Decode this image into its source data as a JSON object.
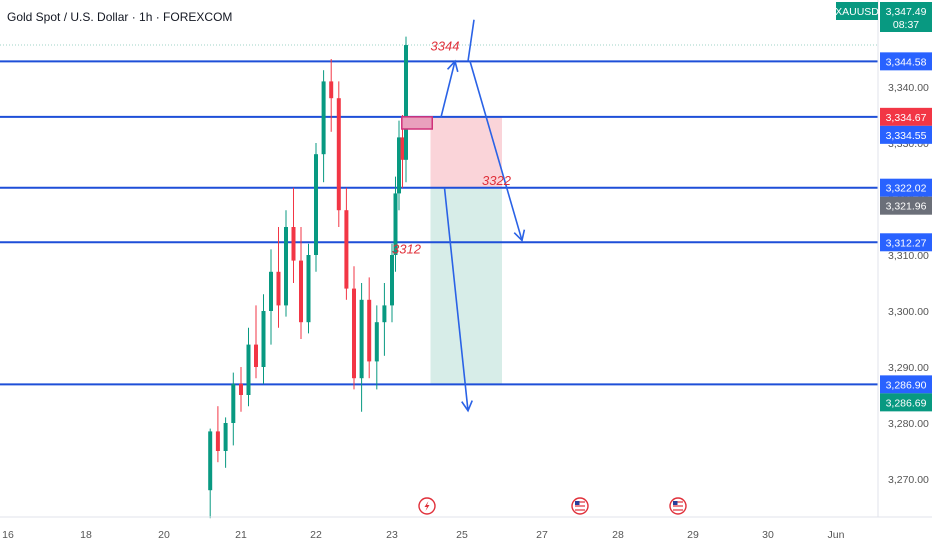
{
  "header": {
    "title": "Gold Spot / U.S. Dollar · 1h · FOREXCOM"
  },
  "colors": {
    "bull": "#089981",
    "bear": "#f23645",
    "level_line": "#1e4fd8",
    "arrow": "#2a62e6",
    "zone_red": "#f9c9cf",
    "zone_green": "#cde9e2",
    "badge_blue": "#2962ff",
    "badge_green": "#089981",
    "badge_red": "#f23645",
    "badge_gray": "#6b6f79",
    "annotation": "#e0303a",
    "marker_box": "#d0317a"
  },
  "chart_data": {
    "type": "candlestick",
    "symbol": "XAUUSD",
    "x_ticks": [
      "16",
      "18",
      "20",
      "21",
      "22",
      "23",
      "25",
      "27",
      "28",
      "29",
      "30",
      "Jun"
    ],
    "y_ticks": [
      "3,270.00",
      "3,280.00",
      "3,290.00",
      "3,300.00",
      "3,310.00",
      "3,320.00",
      "3,330.00",
      "3,340.00"
    ],
    "y_tick_values": [
      3270,
      3280,
      3290,
      3300,
      3310,
      3320,
      3330,
      3340
    ],
    "ylim": [
      3263,
      3350
    ],
    "x_range_days": [
      16,
      32
    ],
    "grid": false,
    "horizontal_levels": [
      3344.58,
      3334.67,
      3322.02,
      3312.27,
      3286.9
    ],
    "price_badges": [
      {
        "label": "XAUUSD",
        "price": 3347.49,
        "kind": "symbol"
      },
      {
        "label": "3,347.49",
        "sub": "08:37",
        "price": 3347.49,
        "kind": "green"
      },
      {
        "label": "3,344.58",
        "price": 3344.58,
        "kind": "blue"
      },
      {
        "label": "3,334.67",
        "price": 3334.67,
        "kind": "red"
      },
      {
        "label": "3,334.55",
        "price": 3334.55,
        "kind": "blue"
      },
      {
        "label": "3,322.02",
        "price": 3322.02,
        "kind": "blue"
      },
      {
        "label": "3,321.96",
        "price": 3321.96,
        "kind": "gray"
      },
      {
        "label": "3,312.27",
        "price": 3312.27,
        "kind": "blue"
      },
      {
        "label": "3,286.90",
        "price": 3286.9,
        "kind": "blue"
      },
      {
        "label": "3,286.69",
        "price": 3286.69,
        "kind": "green"
      }
    ],
    "position_zone": {
      "day_start": 24.1,
      "day_end": 26.0,
      "entry": 3322.02,
      "stop": 3334.67,
      "target": 3286.9
    },
    "marker_box": {
      "day_start": 23.28,
      "day_end": 24.15,
      "low": 3332.5,
      "high": 3334.67
    },
    "annotations": [
      {
        "text": "3344",
        "day": 24.1,
        "price": 3346.5
      },
      {
        "text": "3322",
        "day": 25.5,
        "price": 3322.5
      },
      {
        "text": "3312",
        "day": 23.0,
        "price": 3310.3
      }
    ],
    "arrows": [
      {
        "from": [
          24.4,
          3334.6
        ],
        "to": [
          24.8,
          3344.6
        ]
      },
      {
        "from": [
          25.2,
          3344.6
        ],
        "to": [
          26.5,
          3312.6
        ]
      },
      {
        "from": [
          24.5,
          3322.0
        ],
        "to": [
          25.15,
          3282.2
        ]
      },
      {
        "from": [
          25.15,
          3344.6
        ],
        "to": [
          25.3,
          3352
        ]
      }
    ],
    "event_icons": [
      {
        "name": "lightning-icon",
        "day": 24.0
      },
      {
        "name": "us-flag-icon",
        "day": 27.5
      },
      {
        "name": "us-flag-icon",
        "day": 28.8
      }
    ],
    "candles": [
      [
        20.6,
        3268,
        3279,
        3263,
        3278.5
      ],
      [
        20.7,
        3278.5,
        3283,
        3273,
        3275
      ],
      [
        20.8,
        3275,
        3281,
        3272,
        3280
      ],
      [
        20.9,
        3280,
        3289,
        3276,
        3287
      ],
      [
        21.0,
        3287,
        3290,
        3282,
        3285
      ],
      [
        21.1,
        3285,
        3297,
        3283,
        3294
      ],
      [
        21.2,
        3294,
        3301,
        3288,
        3290
      ],
      [
        21.3,
        3290,
        3303,
        3287,
        3300
      ],
      [
        21.4,
        3300,
        3311,
        3294,
        3307
      ],
      [
        21.5,
        3307,
        3315,
        3297,
        3301
      ],
      [
        21.6,
        3301,
        3318,
        3299,
        3315
      ],
      [
        21.7,
        3315,
        3322,
        3305,
        3309
      ],
      [
        21.8,
        3309,
        3315,
        3295,
        3298
      ],
      [
        21.9,
        3298,
        3312,
        3296,
        3310
      ],
      [
        22.0,
        3310,
        3330,
        3307,
        3328
      ],
      [
        22.1,
        3328,
        3343,
        3323,
        3341
      ],
      [
        22.2,
        3341,
        3345,
        3332,
        3338
      ],
      [
        22.3,
        3338,
        3341,
        3315,
        3318
      ],
      [
        22.4,
        3318,
        3322,
        3302,
        3304
      ],
      [
        22.5,
        3304,
        3308,
        3286,
        3288
      ],
      [
        22.6,
        3288,
        3305,
        3282,
        3302
      ],
      [
        22.7,
        3302,
        3306,
        3288,
        3291
      ],
      [
        22.8,
        3291,
        3301,
        3286,
        3298
      ],
      [
        22.9,
        3298,
        3305,
        3292,
        3301
      ],
      [
        23.0,
        3301,
        3312,
        3298,
        3310
      ],
      [
        23.1,
        3310,
        3324,
        3307,
        3321
      ],
      [
        23.2,
        3321,
        3334,
        3318,
        3331
      ],
      [
        23.3,
        3331,
        3335,
        3322,
        3327
      ],
      [
        23.4,
        3327,
        3349,
        3323,
        3347.49
      ]
    ]
  }
}
